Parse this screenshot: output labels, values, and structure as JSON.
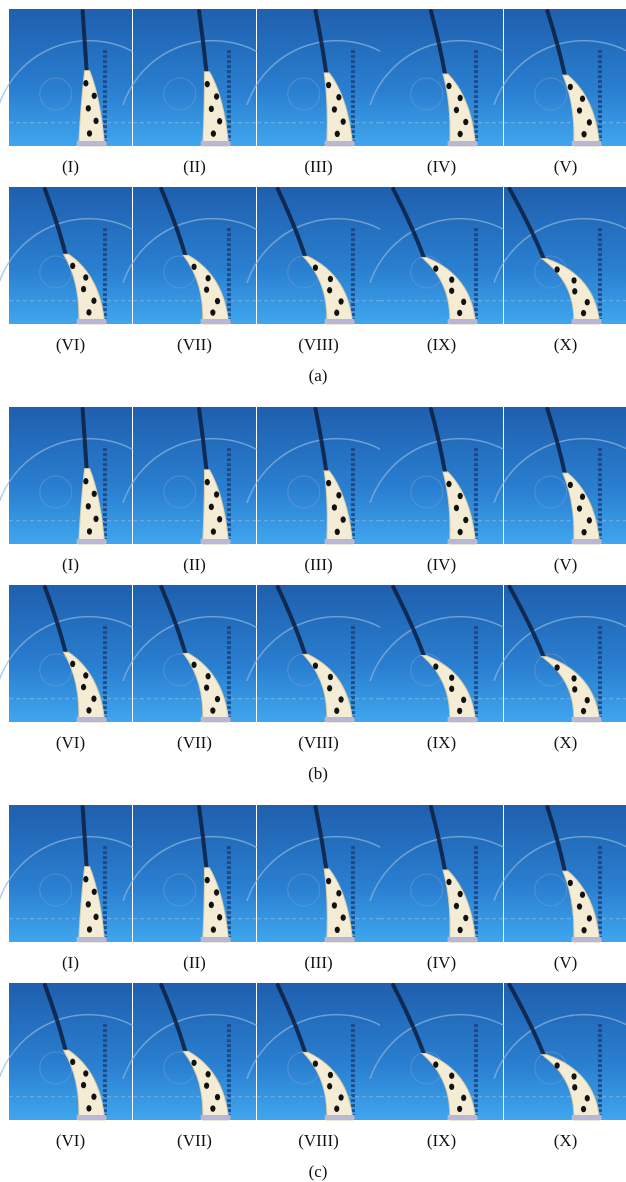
{
  "panels": [
    {
      "label": "(a)",
      "rows": [
        [
          "(I)",
          "(II)",
          "(III)",
          "(IV)",
          "(V)"
        ],
        [
          "(VI)",
          "(VII)",
          "(VIII)",
          "(IX)",
          "(X)"
        ]
      ]
    },
    {
      "label": "(b)",
      "rows": [
        [
          "(I)",
          "(II)",
          "(III)",
          "(IV)",
          "(V)"
        ],
        [
          "(VI)",
          "(VII)",
          "(VIII)",
          "(IX)",
          "(X)"
        ]
      ]
    },
    {
      "label": "(c)",
      "rows": [
        [
          "(I)",
          "(II)",
          "(III)",
          "(IV)",
          "(V)"
        ],
        [
          "(VI)",
          "(VII)",
          "(VIII)",
          "(IX)",
          "(X)"
        ]
      ]
    }
  ]
}
